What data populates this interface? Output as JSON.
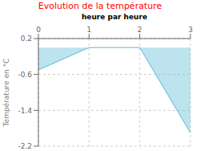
{
  "chart_data": {
    "type": "area",
    "title": "Evolution de la température",
    "ylabel": "Température en °C",
    "xlabel": "heure par heure",
    "x": [
      0,
      1,
      2,
      3
    ],
    "values": [
      -0.5,
      0,
      0,
      -1.9
    ],
    "xlim": [
      0,
      3
    ],
    "ylim": [
      -2.2,
      0.2
    ],
    "xticks": [
      0,
      1,
      2,
      3
    ],
    "yticks": [
      0.2,
      -0.6,
      -1.4,
      -2.2
    ],
    "color": "#5bb8d4",
    "grid": true
  }
}
